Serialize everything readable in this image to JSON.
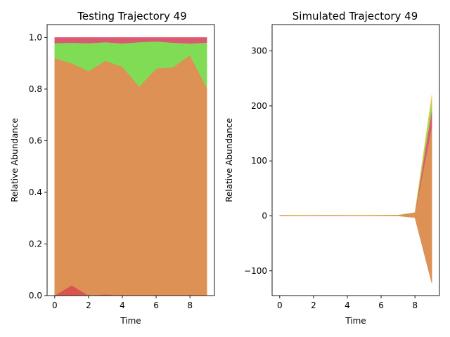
{
  "chart_data": [
    {
      "type": "area",
      "title": "Testing Trajectory 49",
      "xlabel": "Time",
      "ylabel": "Relative Abundance",
      "xlim": [
        -0.45,
        9.45
      ],
      "ylim": [
        0,
        1.05
      ],
      "xticks": [
        0,
        2,
        4,
        6,
        8
      ],
      "yticks": [
        0.0,
        0.2,
        0.4,
        0.6,
        0.8,
        1.0
      ],
      "ytick_labels": [
        "0.0",
        "0.2",
        "0.4",
        "0.6",
        "0.8",
        "1.0"
      ],
      "x": [
        0,
        1,
        2,
        3,
        4,
        5,
        6,
        7,
        8,
        9
      ],
      "stacked": true,
      "series": [
        {
          "color": "#d9534f",
          "values": [
            0.0,
            0.04,
            0.0,
            0.005,
            0.0,
            0.0,
            0.002,
            0.0,
            0.0,
            0.0
          ]
        },
        {
          "color": "#dd9155",
          "values": [
            0.92,
            0.86,
            0.87,
            0.905,
            0.887,
            0.81,
            0.878,
            0.885,
            0.932,
            0.805
          ]
        },
        {
          "color": "#80dc55",
          "values": [
            0.058,
            0.08,
            0.108,
            0.072,
            0.09,
            0.172,
            0.105,
            0.095,
            0.045,
            0.175
          ]
        },
        {
          "color": "#db5a72",
          "values": [
            0.022,
            0.02,
            0.022,
            0.018,
            0.023,
            0.018,
            0.015,
            0.02,
            0.023,
            0.02
          ]
        }
      ]
    },
    {
      "type": "area",
      "title": "Simulated Trajectory 49",
      "xlabel": "Time",
      "ylabel": "Relative Abundance",
      "xlim": [
        -0.45,
        9.45
      ],
      "ylim": [
        -145,
        348
      ],
      "xticks": [
        0,
        2,
        4,
        6,
        8
      ],
      "yticks": [
        -100,
        0,
        100,
        200,
        300
      ],
      "ytick_labels": [
        "−100",
        "0",
        "100",
        "200",
        "300"
      ],
      "x": [
        0,
        1,
        2,
        3,
        4,
        5,
        6,
        7,
        8,
        9
      ],
      "stacked": true,
      "series": [
        {
          "color": "#d9534f",
          "values": [
            0.0,
            0.0,
            0.0,
            0.0,
            0.0,
            0.0,
            0.0,
            0.0,
            -3.0,
            -122.0
          ]
        },
        {
          "color": "#dd9155",
          "values": [
            0.9,
            0.85,
            0.88,
            0.9,
            0.88,
            0.85,
            0.9,
            1.2,
            8.0,
            285.0
          ]
        },
        {
          "color": "#db5a72",
          "values": [
            0.05,
            0.05,
            0.05,
            0.05,
            0.05,
            0.05,
            0.05,
            0.1,
            0.5,
            30.0
          ]
        },
        {
          "color": "#80dc55",
          "values": [
            0.05,
            0.05,
            0.05,
            0.05,
            0.05,
            0.05,
            0.05,
            0.1,
            0.4,
            15.0
          ]
        },
        {
          "color": "#e0c94f",
          "values": [
            0.0,
            0.0,
            0.0,
            0.0,
            0.0,
            0.0,
            0.0,
            0.0,
            0.1,
            12.0
          ]
        }
      ]
    }
  ]
}
